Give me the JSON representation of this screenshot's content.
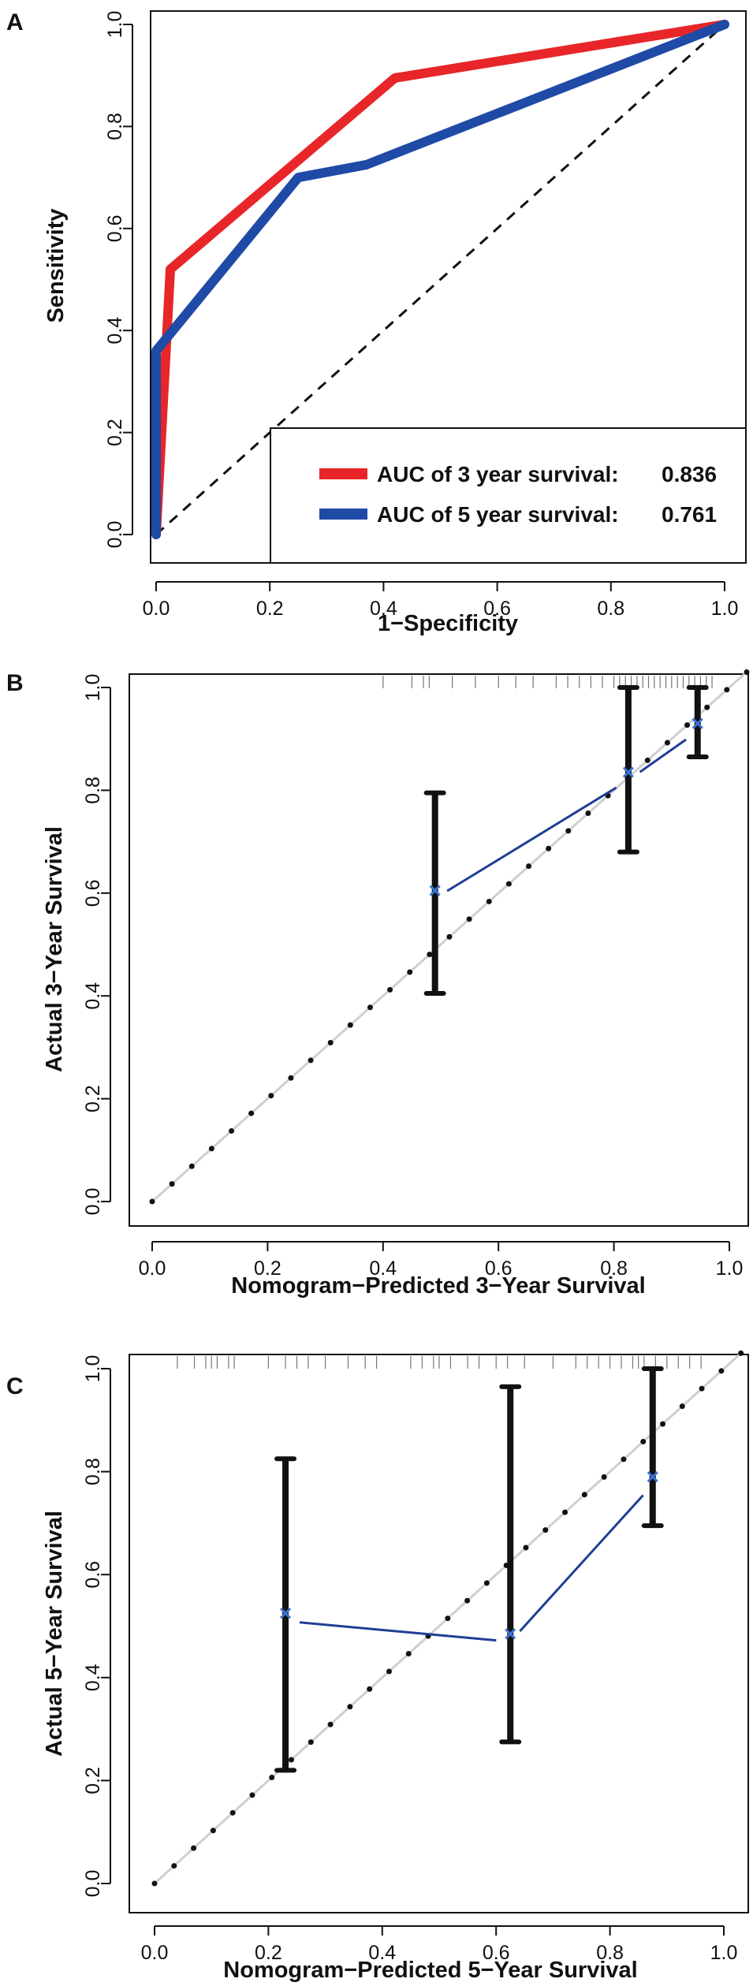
{
  "chart_data": [
    {
      "type": "line",
      "panel_label": "A",
      "xlabel": "1−Specificity",
      "ylabel": "Sensitivity",
      "xlim": [
        0,
        1
      ],
      "ylim": [
        0,
        1
      ],
      "x_ticks": [
        "0.0",
        "0.2",
        "0.4",
        "0.6",
        "0.8",
        "1.0"
      ],
      "y_ticks": [
        "0.0",
        "0.2",
        "0.4",
        "0.6",
        "0.8",
        "1.0"
      ],
      "reference_line": "diagonal dashed",
      "legend": {
        "position": "bottom-right"
      },
      "series": [
        {
          "name": "AUC of 3 year survival:",
          "auc": "0.836",
          "color": "#e8262a",
          "x": [
            0,
            0.025,
            0.42,
            1.0
          ],
          "y": [
            0,
            0.52,
            0.895,
            1.0
          ]
        },
        {
          "name": "AUC of 5 year survival:",
          "auc": "0.761",
          "color": "#1f4aa6",
          "x": [
            0,
            0,
            0.25,
            0.37,
            1.0
          ],
          "y": [
            0,
            0.36,
            0.7,
            0.725,
            1.0
          ]
        }
      ]
    },
    {
      "type": "calibration",
      "panel_label": "B",
      "xlabel": "Nomogram−Predicted 3−Year Survival",
      "ylabel": "Actual 3−Year Survival",
      "xlim": [
        0,
        1
      ],
      "ylim": [
        0,
        1
      ],
      "x_ticks": [
        "0.0",
        "0.2",
        "0.4",
        "0.6",
        "0.8",
        "1.0"
      ],
      "y_ticks": [
        "0.0",
        "0.2",
        "0.4",
        "0.6",
        "0.8",
        "1.0"
      ],
      "points": [
        {
          "predicted": 0.49,
          "observed": 0.605,
          "lower": 0.405,
          "upper": 0.795
        },
        {
          "predicted": 0.825,
          "observed": 0.835,
          "lower": 0.68,
          "upper": 1.0
        },
        {
          "predicted": 0.945,
          "observed": 0.93,
          "lower": 0.865,
          "upper": 1.0
        }
      ],
      "rug": [
        0.4,
        0.45,
        0.47,
        0.48,
        0.52,
        0.56,
        0.6,
        0.63,
        0.66,
        0.7,
        0.72,
        0.74,
        0.76,
        0.78,
        0.8,
        0.81,
        0.82,
        0.83,
        0.84,
        0.85,
        0.86,
        0.87,
        0.88,
        0.89,
        0.9,
        0.91,
        0.92,
        0.93,
        0.94,
        0.95,
        0.96,
        0.97
      ]
    },
    {
      "type": "calibration",
      "panel_label": "C",
      "xlabel": "Nomogram−Predicted  5−Year Survival",
      "ylabel": "Actual 5−Year Survival",
      "xlim": [
        0,
        1
      ],
      "ylim": [
        0,
        1
      ],
      "x_ticks": [
        "0.0",
        "0.2",
        "0.4",
        "0.6",
        "0.8",
        "1.0"
      ],
      "y_ticks": [
        "0.0",
        "0.2",
        "0.4",
        "0.6",
        "0.8",
        "1.0"
      ],
      "points": [
        {
          "predicted": 0.23,
          "observed": 0.525,
          "lower": 0.22,
          "upper": 0.825
        },
        {
          "predicted": 0.625,
          "observed": 0.485,
          "lower": 0.275,
          "upper": 0.965
        },
        {
          "predicted": 0.875,
          "observed": 0.79,
          "lower": 0.695,
          "upper": 1.0
        }
      ],
      "rug": [
        0.04,
        0.07,
        0.09,
        0.1,
        0.11,
        0.13,
        0.14,
        0.2,
        0.23,
        0.25,
        0.27,
        0.3,
        0.34,
        0.37,
        0.39,
        0.45,
        0.47,
        0.49,
        0.5,
        0.52,
        0.55,
        0.57,
        0.6,
        0.62,
        0.65,
        0.7,
        0.74,
        0.76,
        0.78,
        0.8,
        0.82,
        0.84,
        0.85,
        0.86,
        0.88,
        0.9,
        0.92,
        0.94,
        0.96
      ]
    }
  ]
}
